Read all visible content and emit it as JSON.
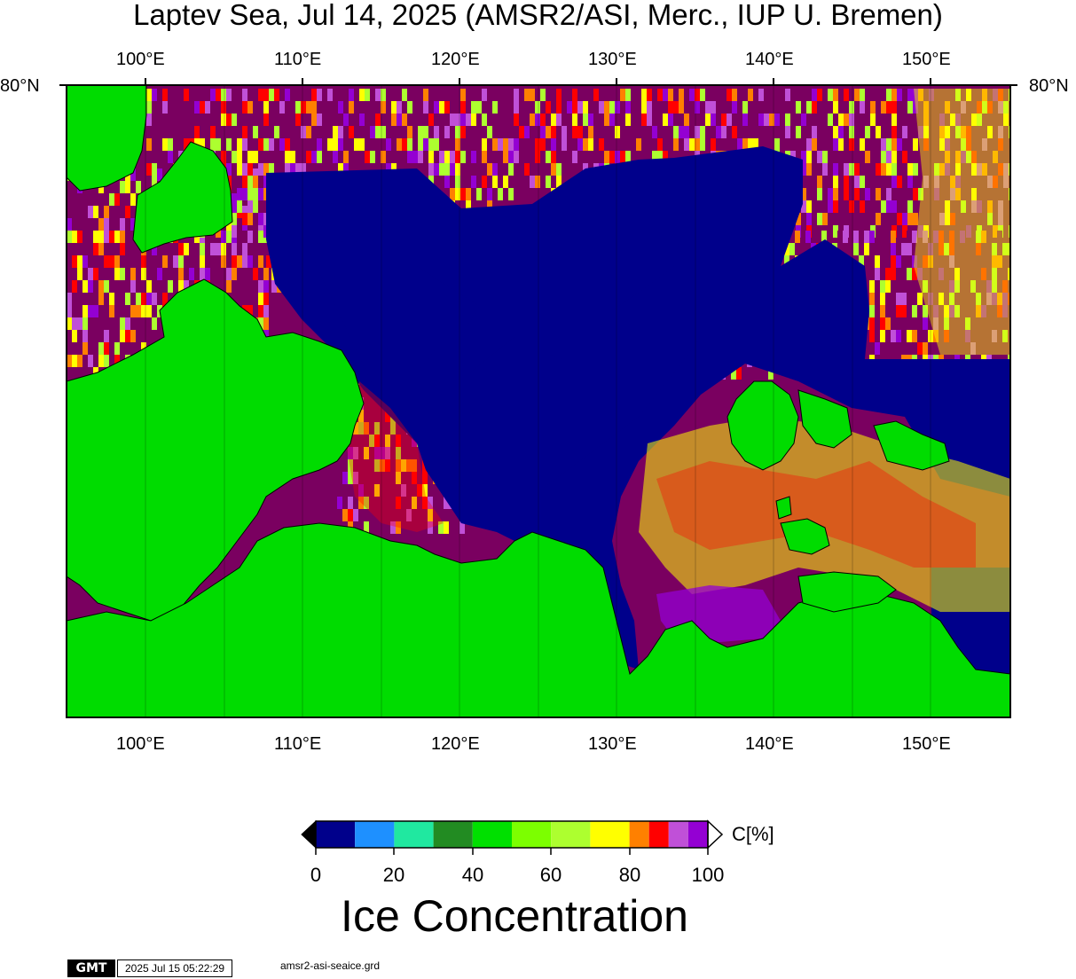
{
  "title": "Laptev Sea, Jul 14, 2025 (AMSR2/ASI, Merc., IUP U. Bremen)",
  "lon_labels": [
    "100°E",
    "110°E",
    "120°E",
    "130°E",
    "140°E",
    "150°E"
  ],
  "lat_label": "80°N",
  "colorbar": {
    "colors": [
      "#00008b",
      "#1e90ff",
      "#20e8a0",
      "#228b22",
      "#00e000",
      "#7cff00",
      "#adff2f",
      "#ffff00",
      "#ff8000",
      "#ff0000",
      "#c050d8",
      "#9400d3"
    ],
    "ticks": [
      "0",
      "20",
      "40",
      "60",
      "80",
      "100"
    ],
    "unit": "C[%]",
    "label": "Ice Concentration"
  },
  "colors": {
    "land": "#00dc00",
    "open_water": "#00008b",
    "pack_ice": "#7a0060"
  },
  "footer": {
    "logo": "GMT",
    "timestamp": "2025 Jul 15 05:22:29",
    "filename": "amsr2-asi-seaice.grd"
  }
}
